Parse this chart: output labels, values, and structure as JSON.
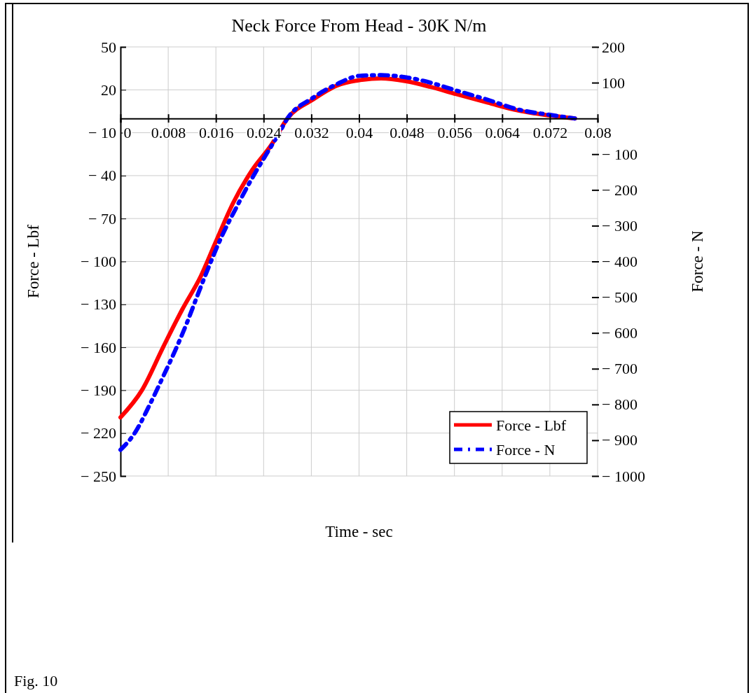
{
  "chart_data": {
    "type": "line",
    "title": "Neck Force From Head - 30K N/m",
    "xlabel": "Time - sec",
    "ylabel": "Force - Lbf",
    "y2label": "Force - N",
    "annotations": [
      "Fig. 10"
    ],
    "xlim": [
      0,
      0.08
    ],
    "xticks": [
      0,
      0.008,
      0.016,
      0.024,
      0.032,
      0.04,
      0.048,
      0.056,
      0.064,
      0.072,
      0.08
    ],
    "ylim": [
      -250,
      50
    ],
    "yticks": [
      {
        "value": 50,
        "label": "50"
      },
      {
        "value": 20,
        "label": "20"
      },
      {
        "value": -10,
        "label": "− 10"
      },
      {
        "value": -40,
        "label": "− 40"
      },
      {
        "value": -70,
        "label": "− 70"
      },
      {
        "value": -100,
        "label": "− 100"
      },
      {
        "value": -130,
        "label": "− 130"
      },
      {
        "value": -160,
        "label": "− 160"
      },
      {
        "value": -190,
        "label": "− 190"
      },
      {
        "value": -220,
        "label": "− 220"
      },
      {
        "value": -250,
        "label": "− 250"
      }
    ],
    "y2lim": [
      -1000,
      200
    ],
    "y2ticks": [
      {
        "value": 200,
        "label": "200"
      },
      {
        "value": 100,
        "label": "100"
      },
      {
        "value": -100,
        "label": "− 100"
      },
      {
        "value": -200,
        "label": "− 200"
      },
      {
        "value": -300,
        "label": "− 300"
      },
      {
        "value": -400,
        "label": "− 400"
      },
      {
        "value": -500,
        "label": "− 500"
      },
      {
        "value": -600,
        "label": "− 600"
      },
      {
        "value": -700,
        "label": "− 700"
      },
      {
        "value": -800,
        "label": "− 800"
      },
      {
        "value": -900,
        "label": "− 900"
      },
      {
        "value": -1000,
        "label": "− 1000"
      }
    ],
    "grid": true,
    "legend": "bottom right",
    "marker": "none",
    "series": [
      {
        "name": "Force - Lbf",
        "color": "#ff0000",
        "line_style": "solid",
        "x": [
          0,
          0.0036,
          0.0072,
          0.0103,
          0.0135,
          0.0159,
          0.0189,
          0.0221,
          0.0253,
          0.028,
          0.0322,
          0.0363,
          0.0405,
          0.0437,
          0.0479,
          0.052,
          0.0563,
          0.0616,
          0.0667,
          0.072,
          0.0762
        ],
        "values": [
          -209,
          -190,
          -159.5,
          -134,
          -110,
          -87,
          -59,
          -36,
          -18.5,
          0,
          13,
          23,
          27,
          28,
          26,
          22,
          17,
          11,
          5.5,
          2,
          0
        ]
      },
      {
        "name": "Force - N",
        "color": "#0000ff",
        "line_style": "dashed",
        "axis": "y2",
        "x": [
          0,
          0.0025,
          0.0048,
          0.0072,
          0.0092,
          0.0112,
          0.013,
          0.015,
          0.017,
          0.0194,
          0.0217,
          0.0241,
          0.0264,
          0.028,
          0.0322,
          0.0363,
          0.04,
          0.0437,
          0.0479,
          0.052,
          0.0563,
          0.0616,
          0.0667,
          0.072,
          0.0762
        ],
        "values": [
          -927,
          -877,
          -804,
          -720,
          -648,
          -569,
          -491,
          -407,
          -329,
          -250,
          -178,
          -110,
          -47,
          0,
          57,
          96,
          119,
          121,
          115,
          100,
          78,
          52,
          25,
          10,
          0
        ]
      }
    ]
  }
}
